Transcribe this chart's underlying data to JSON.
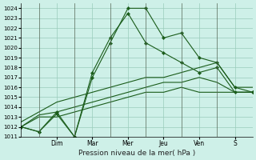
{
  "xlabel": "Pression niveau de la mer( hPa )",
  "background_color": "#cef0e8",
  "grid_color": "#99ccbb",
  "line_color": "#1a5c1a",
  "ylim": [
    1011,
    1024.5
  ],
  "yticks": [
    1011,
    1012,
    1013,
    1014,
    1015,
    1016,
    1017,
    1018,
    1019,
    1020,
    1021,
    1022,
    1023,
    1024
  ],
  "day_labels": [
    "Dim",
    "Mar",
    "Mer",
    "Jeu",
    "Ven",
    "S"
  ],
  "day_tick_positions": [
    2,
    4,
    6,
    8,
    10,
    12
  ],
  "day_vline_positions": [
    1,
    3,
    5,
    7,
    9,
    11
  ],
  "xlim": [
    0,
    13
  ],
  "lines": [
    {
      "x": [
        0,
        1,
        2,
        3,
        4,
        5,
        6,
        7,
        8,
        9,
        10,
        11,
        12,
        13
      ],
      "y": [
        1012.0,
        1011.5,
        1013.3,
        1011.0,
        1017.0,
        1020.5,
        1024.0,
        1024.0,
        1021.0,
        1021.5,
        1019.0,
        1018.5,
        1016.0,
        1015.5
      ],
      "marker": true
    },
    {
      "x": [
        0,
        1,
        2,
        3,
        4,
        5,
        6,
        7,
        8,
        9,
        10,
        11,
        12,
        13
      ],
      "y": [
        1012.0,
        1011.5,
        1013.5,
        1011.0,
        1017.5,
        1021.0,
        1023.5,
        1020.5,
        1019.5,
        1018.5,
        1017.5,
        1018.0,
        1015.5,
        1015.5
      ],
      "marker": true
    },
    {
      "x": [
        0,
        1,
        2,
        3,
        4,
        5,
        6,
        7,
        8,
        9,
        10,
        11,
        12,
        13
      ],
      "y": [
        1012.5,
        1013.5,
        1014.5,
        1015.0,
        1015.5,
        1016.0,
        1016.5,
        1017.0,
        1017.0,
        1017.5,
        1018.0,
        1018.5,
        1016.0,
        1016.0
      ],
      "marker": false
    },
    {
      "x": [
        0,
        1,
        2,
        3,
        4,
        5,
        6,
        7,
        8,
        9,
        10,
        11,
        12,
        13
      ],
      "y": [
        1012.0,
        1013.2,
        1013.5,
        1014.0,
        1014.5,
        1015.0,
        1015.5,
        1016.0,
        1016.5,
        1016.5,
        1017.0,
        1016.5,
        1015.5,
        1015.5
      ],
      "marker": false
    },
    {
      "x": [
        0,
        1,
        2,
        3,
        4,
        5,
        6,
        7,
        8,
        9,
        10,
        11,
        12,
        13
      ],
      "y": [
        1012.0,
        1013.0,
        1013.0,
        1013.5,
        1014.0,
        1014.5,
        1015.0,
        1015.5,
        1015.5,
        1016.0,
        1015.5,
        1015.5,
        1015.5,
        1015.5
      ],
      "marker": false
    }
  ]
}
